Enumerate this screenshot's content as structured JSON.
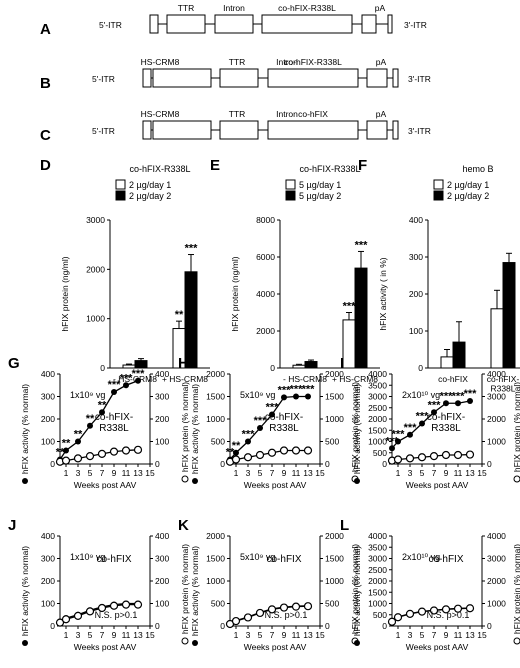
{
  "constructs": [
    {
      "label": "A",
      "left_itr": "5'-ITR",
      "right_itr": "3'-ITR",
      "elements": [
        {
          "name": "",
          "top": ""
        },
        {
          "name": "TTR",
          "top": "TTR"
        },
        {
          "name": "Intron",
          "top": "Intron"
        },
        {
          "name": "co-hFIX-R338L",
          "top": "co-hFIX-R338L"
        },
        {
          "name": "",
          "top": ""
        },
        {
          "name": "pA",
          "top": "pA"
        }
      ]
    },
    {
      "label": "B",
      "left_itr": "5'-ITR",
      "right_itr": "3'-ITR",
      "elements": [
        {
          "name": "HS-CRM8",
          "top": "HS-CRM8"
        },
        {
          "name": "TTR",
          "top": "TTR"
        },
        {
          "name": "Intron",
          "top": "Intron"
        },
        {
          "name": "co-hFIX-R338L",
          "top": "co-hFIX-R338L"
        },
        {
          "name": "pA",
          "top": "pA"
        }
      ]
    },
    {
      "label": "C",
      "left_itr": "5'-ITR",
      "right_itr": "3'-ITR",
      "elements": [
        {
          "name": "HS-CRM8",
          "top": "HS-CRM8"
        },
        {
          "name": "TTR",
          "top": "TTR"
        },
        {
          "name": "Intron",
          "top": "Intron"
        },
        {
          "name": "co-hFIX",
          "top": "co-hFIX"
        },
        {
          "name": "pA",
          "top": "pA"
        }
      ]
    }
  ],
  "chart_data": [
    {
      "panel": "D",
      "type": "bar",
      "title": "co-hFIX-R338L",
      "ylabel": "hFIX protein  (ng/ml)",
      "ylim": [
        0,
        3000
      ],
      "yticks": [
        "0",
        "1000",
        "2000",
        "3000"
      ],
      "categories": [
        "- HS-CRM8",
        "+ HS-CRM8"
      ],
      "series": [
        {
          "name": "2 µg/day 1",
          "fill": "white",
          "values": [
            60,
            800
          ],
          "errors": [
            20,
            150
          ]
        },
        {
          "name": "2 µg/day 2",
          "fill": "black",
          "values": [
            150,
            1950
          ],
          "errors": [
            40,
            350
          ]
        }
      ],
      "significance": [
        "",
        "",
        "**",
        "***"
      ]
    },
    {
      "panel": "E",
      "type": "bar",
      "title": "co-hFIX-R338L",
      "ylabel": "hFIX protein  (ng/ml)",
      "ylim": [
        0,
        8000
      ],
      "yticks": [
        "0",
        "2000",
        "4000",
        "6000",
        "8000"
      ],
      "categories": [
        "- HS-CRM8",
        "+ HS-CRM8"
      ],
      "series": [
        {
          "name": "5 µg/day 1",
          "fill": "white",
          "values": [
            150,
            2600
          ],
          "errors": [
            50,
            400
          ]
        },
        {
          "name": "5 µg/day 2",
          "fill": "black",
          "values": [
            350,
            5400
          ],
          "errors": [
            80,
            900
          ]
        }
      ],
      "significance": [
        "",
        "",
        "***",
        "***"
      ]
    },
    {
      "panel": "F",
      "type": "bar",
      "title": "hemo B",
      "ylabel": "hFIX activity ( in %)",
      "ylim": [
        0,
        400
      ],
      "yticks": [
        "0",
        "100",
        "200",
        "300",
        "400"
      ],
      "categories": [
        "co-hFIX",
        "co-hFIX-\nR338L"
      ],
      "series": [
        {
          "name": "2 µg/day 1",
          "fill": "white",
          "values": [
            30,
            160
          ],
          "errors": [
            20,
            50
          ]
        },
        {
          "name": "2 µg/day 2",
          "fill": "black",
          "values": [
            70,
            285
          ],
          "errors": [
            55,
            25
          ]
        }
      ],
      "significance": [
        "",
        "",
        "",
        ""
      ]
    },
    {
      "panel": "G",
      "type": "line",
      "dose": "1x10⁹ vg",
      "construct": "co-hFIX-\nR338L",
      "x": [
        0,
        1,
        3,
        5,
        7,
        9,
        11,
        13
      ],
      "xticks": [
        "1",
        "3",
        "5",
        "7",
        "9",
        "11",
        "13",
        "15"
      ],
      "xlabel": "Weeks post AAV",
      "left_ylim": [
        0,
        400
      ],
      "left_yticks": [
        "0",
        "100",
        "200",
        "300",
        "400"
      ],
      "right_ylim": [
        0,
        400
      ],
      "right_yticks": [
        "0",
        "100",
        "200",
        "300",
        "400"
      ],
      "activity": [
        20,
        60,
        100,
        170,
        230,
        320,
        350,
        370
      ],
      "protein": [
        10,
        15,
        25,
        35,
        45,
        55,
        60,
        63
      ],
      "significance": [
        "**",
        "**",
        "**",
        "**",
        "**",
        "***",
        "***",
        "***"
      ],
      "left_ylabel": "hFIX activity (% normal)",
      "right_ylabel": "hFIX protein (% normal)"
    },
    {
      "panel": "H",
      "type": "line",
      "dose": "5x10⁹ vg",
      "construct": "co-hFIX-\nR338L",
      "x": [
        0,
        1,
        3,
        5,
        7,
        9,
        11,
        13
      ],
      "xticks": [
        "1",
        "3",
        "5",
        "7",
        "9",
        "11",
        "13",
        "15"
      ],
      "xlabel": "Weeks post AAV",
      "left_ylim": [
        0,
        2000
      ],
      "left_yticks": [
        "0",
        "500",
        "1000",
        "1500",
        "2000"
      ],
      "right_ylim": [
        0,
        2000
      ],
      "right_yticks": [
        "0",
        "500",
        "1000",
        "1500",
        "2000"
      ],
      "activity": [
        100,
        250,
        500,
        800,
        1100,
        1480,
        1500,
        1500
      ],
      "protein": [
        50,
        100,
        150,
        200,
        250,
        300,
        300,
        300
      ],
      "significance": [
        "**",
        "**",
        "***",
        "***",
        "***",
        "***",
        "***",
        "***"
      ],
      "left_ylabel": "hFIX activity (% normal)",
      "right_ylabel": "hFIX protein (% normal)"
    },
    {
      "panel": "I",
      "type": "line",
      "dose": "2x10¹⁰ vg",
      "construct": "co-hFIX-\nR338L",
      "x": [
        0,
        1,
        3,
        5,
        7,
        9,
        11,
        13
      ],
      "xticks": [
        "1",
        "3",
        "5",
        "7",
        "9",
        "11",
        "13",
        "15"
      ],
      "xlabel": "Weeks post AAV",
      "left_ylim": [
        0,
        4000
      ],
      "left_yticks": [
        "0",
        "500",
        "1000",
        "1500",
        "2000",
        "2500",
        "3000",
        "3500",
        "4000"
      ],
      "right_ylim": [
        0,
        4000
      ],
      "right_yticks": [
        "0",
        "1000",
        "2000",
        "3000",
        "4000"
      ],
      "activity": [
        700,
        1000,
        1300,
        1800,
        2300,
        2700,
        2700,
        2800
      ],
      "protein": [
        150,
        200,
        250,
        300,
        350,
        400,
        400,
        420
      ],
      "significance": [
        "***",
        "***",
        "***",
        "***",
        "***",
        "***",
        "***",
        "***"
      ],
      "left_ylabel": "hFIX activity (% normal)",
      "right_ylabel": "hFIX protein (% normal)"
    },
    {
      "panel": "J",
      "type": "line",
      "dose": "1x10⁹ vg",
      "construct": "co-hFIX",
      "x": [
        0,
        1,
        3,
        5,
        7,
        9,
        11,
        13
      ],
      "xticks": [
        "1",
        "3",
        "5",
        "7",
        "9",
        "11",
        "13",
        "15"
      ],
      "xlabel": "Weeks post AAV",
      "left_ylim": [
        0,
        400
      ],
      "left_yticks": [
        "0",
        "100",
        "200",
        "300",
        "400"
      ],
      "right_ylim": [
        0,
        400
      ],
      "right_yticks": [
        "0",
        "100",
        "200",
        "300",
        "400"
      ],
      "activity": [
        20,
        35,
        50,
        70,
        85,
        95,
        100,
        100
      ],
      "protein": [
        15,
        30,
        45,
        65,
        80,
        90,
        95,
        95
      ],
      "note": "N.S. p>0.1",
      "left_ylabel": "hFIX activity (% normal)",
      "right_ylabel": "hFIX protein (% normal)"
    },
    {
      "panel": "K",
      "type": "line",
      "dose": "5x10⁹ vg",
      "construct": "co-hFIX",
      "x": [
        0,
        1,
        3,
        5,
        7,
        9,
        11,
        13
      ],
      "xticks": [
        "1",
        "3",
        "5",
        "7",
        "9",
        "11",
        "13",
        "15"
      ],
      "xlabel": "Weeks post AAV",
      "left_ylim": [
        0,
        2000
      ],
      "left_yticks": [
        "0",
        "500",
        "1000",
        "1500",
        "2000"
      ],
      "right_ylim": [
        0,
        2000
      ],
      "right_yticks": [
        "0",
        "500",
        "1000",
        "1500",
        "2000"
      ],
      "activity": [
        50,
        120,
        200,
        300,
        380,
        420,
        440,
        450
      ],
      "protein": [
        45,
        110,
        190,
        290,
        370,
        410,
        430,
        440
      ],
      "note": "N.S. p>0.1",
      "left_ylabel": "hFIX activity (% normal)",
      "right_ylabel": "hFIX protein (% normal)"
    },
    {
      "panel": "L",
      "type": "line",
      "dose": "2x10¹⁰ vg",
      "construct": "co-hFIX",
      "x": [
        0,
        1,
        3,
        5,
        7,
        9,
        11,
        13
      ],
      "xticks": [
        "1",
        "3",
        "5",
        "7",
        "9",
        "11",
        "13",
        "15"
      ],
      "xlabel": "Weeks post AAV",
      "left_ylim": [
        0,
        4000
      ],
      "left_yticks": [
        "0",
        "500",
        "1000",
        "1500",
        "2000",
        "2500",
        "3000",
        "3500",
        "4000"
      ],
      "right_ylim": [
        0,
        4000
      ],
      "right_yticks": [
        "0",
        "1000",
        "2000",
        "3000",
        "4000"
      ],
      "activity": [
        200,
        400,
        550,
        650,
        700,
        750,
        780,
        800
      ],
      "protein": [
        190,
        390,
        540,
        640,
        690,
        740,
        770,
        790
      ],
      "note": "N.S. p>0.1",
      "left_ylabel": "hFIX activity (% normal)",
      "right_ylabel": "hFIX protein (% normal)"
    }
  ]
}
